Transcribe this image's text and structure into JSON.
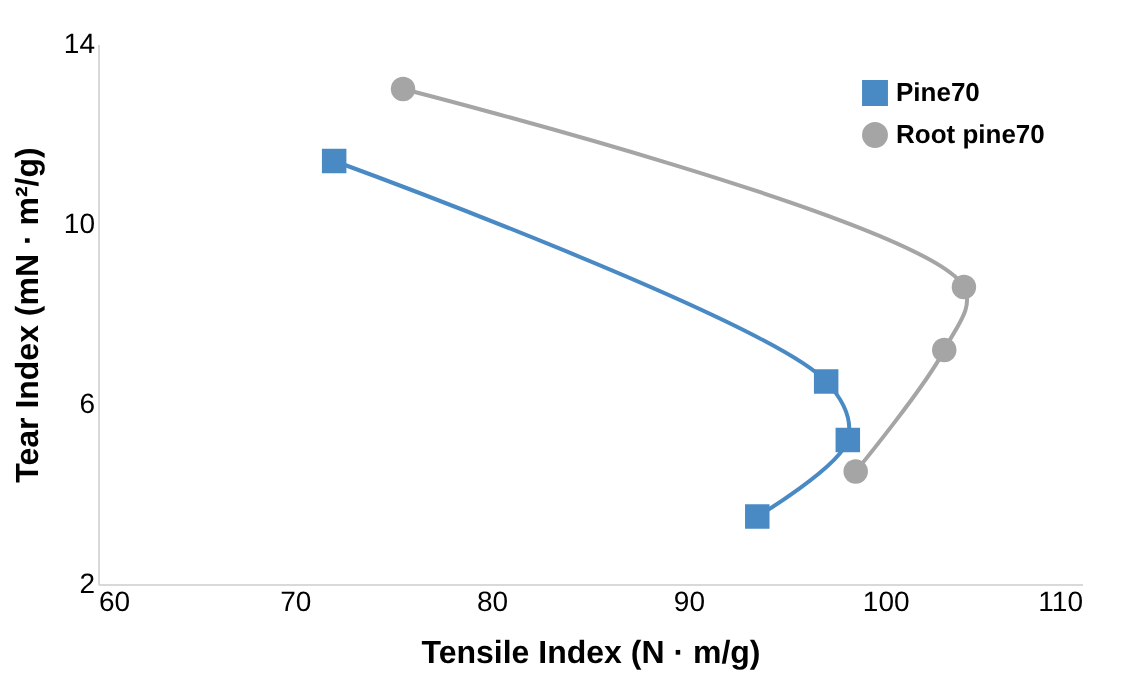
{
  "chart_data": {
    "type": "line",
    "xlabel": "Tensile Index (N · m/g)",
    "ylabel": "Tear Index (mN · m²/g)",
    "series": [
      {
        "name": "Pine70",
        "color": "#4a8ac4",
        "marker": "square",
        "x": [
          72.0,
          97.0,
          98.1,
          93.5
        ],
        "values": [
          11.4,
          6.5,
          5.2,
          3.5
        ]
      },
      {
        "name": "Root pine70",
        "color": "#a5a5a5",
        "marker": "circle",
        "x": [
          75.5,
          104.0,
          103.0,
          98.5
        ],
        "values": [
          13.0,
          8.6,
          7.2,
          4.5
        ]
      }
    ],
    "xlim": [
      60,
      110
    ],
    "xticks": [
      60,
      70,
      80,
      90,
      100,
      110
    ],
    "ylim": [
      2,
      14
    ],
    "yticks": [
      2,
      6,
      10,
      14
    ],
    "grid": false,
    "legend": "top right",
    "line_style": "solid"
  }
}
